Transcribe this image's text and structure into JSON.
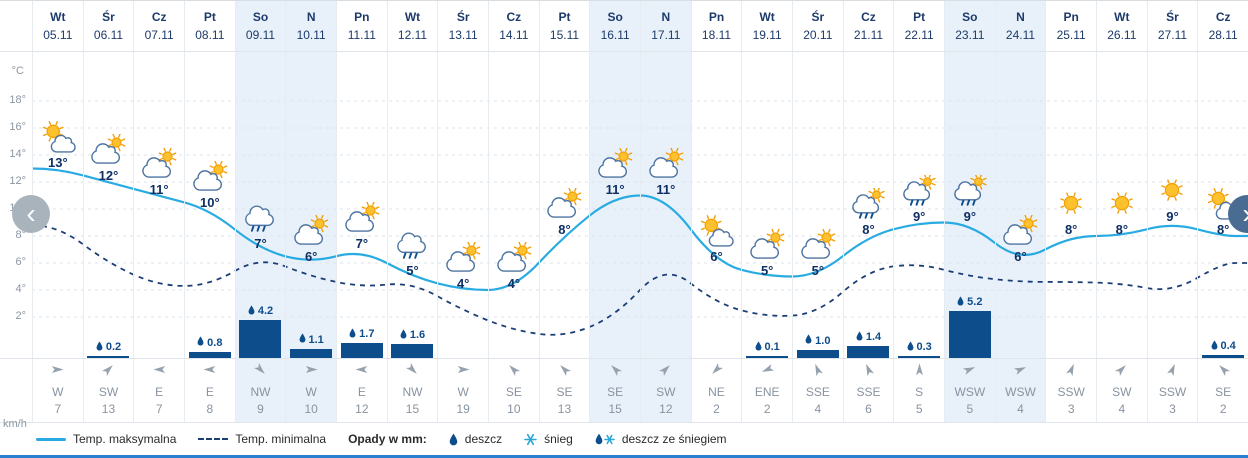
{
  "axis": {
    "temp_unit": "°C",
    "wind_unit": "km/h",
    "temp_ticks": [
      "18°",
      "16°",
      "14°",
      "12°",
      "10°",
      "8°",
      "6°",
      "4°",
      "2°"
    ]
  },
  "nav": {
    "left": "‹",
    "right": "›"
  },
  "colors": {
    "max_line": "#29abe2",
    "min_line": "#1c3e76",
    "precip_bar": "#0d4d8c",
    "weekend_highlight": "#e8f1fa",
    "bottom_bar": "#2b7fd0"
  },
  "legend": {
    "max_label": "Temp. maksymalna",
    "min_label": "Temp. minimalna",
    "precip_title": "Opady w mm:",
    "rain_label": "deszcz",
    "snow_label": "śnieg",
    "sleet_label": "deszcz ze śniegiem"
  },
  "days": [
    {
      "day": "Wt",
      "date": "05.11",
      "temp": "13°",
      "temp_value": 13,
      "icon": "partly-sunny",
      "precip": null,
      "wind_dir": "W",
      "wind_speed": "7",
      "weekend": false
    },
    {
      "day": "Śr",
      "date": "06.11",
      "temp": "12°",
      "temp_value": 12,
      "icon": "mostly-cloudy",
      "precip": 0.2,
      "precip_label": "0.2",
      "wind_dir": "SW",
      "wind_speed": "13",
      "weekend": false
    },
    {
      "day": "Cz",
      "date": "07.11",
      "temp": "11°",
      "temp_value": 11,
      "icon": "mostly-cloudy",
      "precip": null,
      "wind_dir": "E",
      "wind_speed": "7",
      "weekend": false
    },
    {
      "day": "Pt",
      "date": "08.11",
      "temp": "10°",
      "temp_value": 10,
      "icon": "mostly-cloudy",
      "precip": 0.8,
      "precip_label": "0.8",
      "wind_dir": "E",
      "wind_speed": "8",
      "weekend": false
    },
    {
      "day": "So",
      "date": "09.11",
      "temp": "7°",
      "temp_value": 7,
      "icon": "rain",
      "precip": 4.2,
      "precip_label": "4.2",
      "wind_dir": "NW",
      "wind_speed": "9",
      "weekend": true
    },
    {
      "day": "N",
      "date": "10.11",
      "temp": "6°",
      "temp_value": 6,
      "icon": "mostly-cloudy",
      "precip": 1.1,
      "precip_label": "1.1",
      "wind_dir": "W",
      "wind_speed": "10",
      "weekend": true
    },
    {
      "day": "Pn",
      "date": "11.11",
      "temp": "7°",
      "temp_value": 7,
      "icon": "mostly-cloudy",
      "precip": 1.7,
      "precip_label": "1.7",
      "wind_dir": "E",
      "wind_speed": "12",
      "weekend": false
    },
    {
      "day": "Wt",
      "date": "12.11",
      "temp": "5°",
      "temp_value": 5,
      "icon": "rain",
      "precip": 1.6,
      "precip_label": "1.6",
      "wind_dir": "NW",
      "wind_speed": "15",
      "weekend": false
    },
    {
      "day": "Śr",
      "date": "13.11",
      "temp": "4°",
      "temp_value": 4,
      "icon": "mostly-cloudy",
      "precip": null,
      "wind_dir": "W",
      "wind_speed": "19",
      "weekend": false
    },
    {
      "day": "Cz",
      "date": "14.11",
      "temp": "4°",
      "temp_value": 4,
      "icon": "mostly-cloudy",
      "precip": null,
      "wind_dir": "SE",
      "wind_speed": "10",
      "weekend": false
    },
    {
      "day": "Pt",
      "date": "15.11",
      "temp": "8°",
      "temp_value": 8,
      "icon": "mostly-cloudy",
      "precip": null,
      "wind_dir": "SE",
      "wind_speed": "13",
      "weekend": false
    },
    {
      "day": "So",
      "date": "16.11",
      "temp": "11°",
      "temp_value": 11,
      "icon": "mostly-cloudy",
      "precip": null,
      "wind_dir": "SE",
      "wind_speed": "15",
      "weekend": true
    },
    {
      "day": "N",
      "date": "17.11",
      "temp": "11°",
      "temp_value": 11,
      "icon": "mostly-cloudy",
      "precip": null,
      "wind_dir": "SW",
      "wind_speed": "12",
      "weekend": true
    },
    {
      "day": "Pn",
      "date": "18.11",
      "temp": "6°",
      "temp_value": 6,
      "icon": "partly-sunny",
      "precip": null,
      "wind_dir": "NE",
      "wind_speed": "2",
      "weekend": false
    },
    {
      "day": "Wt",
      "date": "19.11",
      "temp": "5°",
      "temp_value": 5,
      "icon": "mostly-cloudy",
      "precip": 0.1,
      "precip_label": "0.1",
      "wind_dir": "ENE",
      "wind_speed": "2",
      "weekend": false
    },
    {
      "day": "Śr",
      "date": "20.11",
      "temp": "5°",
      "temp_value": 5,
      "icon": "mostly-cloudy",
      "precip": 1.0,
      "precip_label": "1.0",
      "wind_dir": "SSE",
      "wind_speed": "4",
      "weekend": false
    },
    {
      "day": "Cz",
      "date": "21.11",
      "temp": "8°",
      "temp_value": 8,
      "icon": "rain-sun",
      "precip": 1.4,
      "precip_label": "1.4",
      "wind_dir": "SSE",
      "wind_speed": "6",
      "weekend": false
    },
    {
      "day": "Pt",
      "date": "22.11",
      "temp": "9°",
      "temp_value": 9,
      "icon": "rain-sun",
      "precip": 0.3,
      "precip_label": "0.3",
      "wind_dir": "S",
      "wind_speed": "5",
      "weekend": false
    },
    {
      "day": "So",
      "date": "23.11",
      "temp": "9°",
      "temp_value": 9,
      "icon": "rain-sun",
      "precip": 5.2,
      "precip_label": "5.2",
      "wind_dir": "WSW",
      "wind_speed": "5",
      "weekend": true
    },
    {
      "day": "N",
      "date": "24.11",
      "temp": "6°",
      "temp_value": 6,
      "icon": "mostly-cloudy",
      "precip": null,
      "wind_dir": "WSW",
      "wind_speed": "4",
      "weekend": true
    },
    {
      "day": "Pn",
      "date": "25.11",
      "temp": "8°",
      "temp_value": 8,
      "icon": "sunny",
      "precip": null,
      "wind_dir": "SSW",
      "wind_speed": "3",
      "weekend": false
    },
    {
      "day": "Wt",
      "date": "26.11",
      "temp": "8°",
      "temp_value": 8,
      "icon": "sunny",
      "precip": null,
      "wind_dir": "SW",
      "wind_speed": "4",
      "weekend": false
    },
    {
      "day": "Śr",
      "date": "27.11",
      "temp": "9°",
      "temp_value": 9,
      "icon": "sunny",
      "precip": null,
      "wind_dir": "SSW",
      "wind_speed": "3",
      "weekend": false
    },
    {
      "day": "Cz",
      "date": "28.11",
      "temp": "8°",
      "temp_value": 8,
      "icon": "partly-sunny",
      "precip": 0.4,
      "precip_label": "0.4",
      "wind_dir": "SE",
      "wind_speed": "2",
      "weekend": false
    }
  ],
  "chart_data": {
    "type": "line",
    "title": "",
    "xlabel": "",
    "ylabel": "°C",
    "ylim": [
      0,
      19
    ],
    "grid": true,
    "legend_position": "bottom",
    "x": [
      "05.11",
      "06.11",
      "07.11",
      "08.11",
      "09.11",
      "10.11",
      "11.11",
      "12.11",
      "13.11",
      "14.11",
      "15.11",
      "16.11",
      "17.11",
      "18.11",
      "19.11",
      "20.11",
      "21.11",
      "22.11",
      "23.11",
      "24.11",
      "25.11",
      "26.11",
      "27.11",
      "28.11"
    ],
    "series": [
      {
        "name": "Temp. maksymalna",
        "type": "line",
        "style": "solid",
        "color": "#29abe2",
        "values": [
          13,
          12,
          11,
          10,
          7,
          6,
          7,
          5,
          4,
          4,
          8,
          11,
          11,
          6,
          5,
          5,
          8,
          9,
          9,
          6,
          8,
          8,
          9,
          8
        ]
      },
      {
        "name": "Temp. minimalna",
        "type": "line",
        "style": "dashed",
        "color": "#1c3e76",
        "values": [
          8.8,
          6,
          4.3,
          4.3,
          6.5,
          5,
          4.2,
          4.6,
          2.5,
          1,
          0.5,
          2,
          6,
          3,
          2,
          2.2,
          5.5,
          6,
          5,
          4.6,
          4.6,
          4.5,
          3.8,
          6
        ]
      },
      {
        "name": "Opady w mm",
        "type": "bar",
        "color": "#0d4d8c",
        "values": [
          0,
          0.2,
          0,
          0.8,
          4.2,
          1.1,
          1.7,
          1.6,
          0,
          0,
          0,
          0,
          0,
          0,
          0.1,
          1.0,
          1.4,
          0.3,
          5.2,
          0,
          0,
          0,
          0,
          0.4
        ]
      }
    ],
    "wind": {
      "unit": "km/h",
      "directions": [
        "W",
        "SW",
        "E",
        "E",
        "NW",
        "W",
        "E",
        "NW",
        "W",
        "SE",
        "SE",
        "SE",
        "SW",
        "NE",
        "ENE",
        "SSE",
        "SSE",
        "S",
        "WSW",
        "WSW",
        "SSW",
        "SW",
        "SSW",
        "SE"
      ],
      "speeds": [
        7,
        13,
        7,
        8,
        9,
        10,
        12,
        15,
        19,
        10,
        13,
        15,
        12,
        2,
        2,
        4,
        6,
        5,
        5,
        4,
        3,
        4,
        3,
        2
      ]
    }
  }
}
